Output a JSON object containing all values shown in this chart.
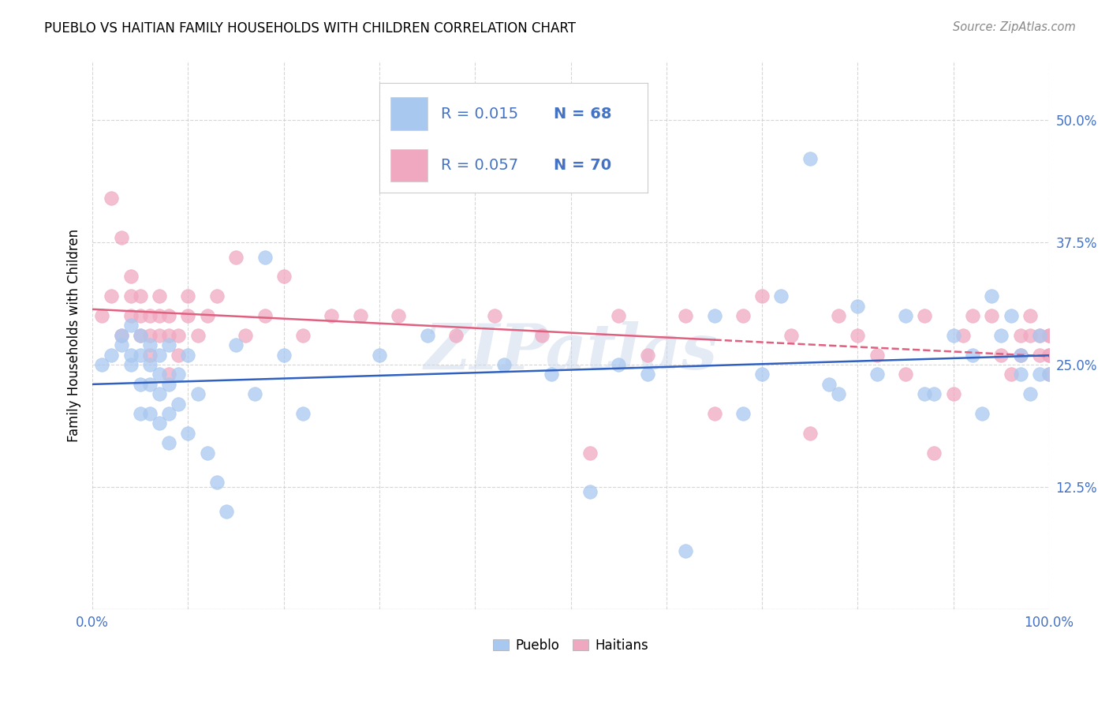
{
  "title": "PUEBLO VS HAITIAN FAMILY HOUSEHOLDS WITH CHILDREN CORRELATION CHART",
  "source": "Source: ZipAtlas.com",
  "ylabel": "Family Households with Children",
  "xlim": [
    0.0,
    1.0
  ],
  "ylim": [
    0.0,
    0.56
  ],
  "xticks": [
    0.0,
    0.1,
    0.2,
    0.3,
    0.4,
    0.5,
    0.6,
    0.7,
    0.8,
    0.9,
    1.0
  ],
  "xticklabels": [
    "0.0%",
    "",
    "",
    "",
    "",
    "",
    "",
    "",
    "",
    "",
    "100.0%"
  ],
  "yticks": [
    0.0,
    0.125,
    0.25,
    0.375,
    0.5
  ],
  "yticklabels": [
    "",
    "12.5%",
    "25.0%",
    "37.5%",
    "50.0%"
  ],
  "pueblo_color": "#a8c8f0",
  "haitian_color": "#f0a8c0",
  "pueblo_line_color": "#3060c0",
  "haitian_line_color": "#e06080",
  "pueblo_R": 0.015,
  "pueblo_N": 68,
  "haitian_R": 0.057,
  "haitian_N": 70,
  "legend_text_color": "#4472c4",
  "watermark": "ZIPatlas",
  "pueblo_x": [
    0.01,
    0.02,
    0.03,
    0.03,
    0.04,
    0.04,
    0.04,
    0.05,
    0.05,
    0.05,
    0.05,
    0.06,
    0.06,
    0.06,
    0.06,
    0.07,
    0.07,
    0.07,
    0.07,
    0.08,
    0.08,
    0.08,
    0.08,
    0.09,
    0.09,
    0.1,
    0.1,
    0.11,
    0.12,
    0.13,
    0.14,
    0.15,
    0.17,
    0.18,
    0.2,
    0.22,
    0.3,
    0.35,
    0.43,
    0.48,
    0.52,
    0.55,
    0.58,
    0.62,
    0.65,
    0.68,
    0.7,
    0.72,
    0.75,
    0.77,
    0.78,
    0.8,
    0.82,
    0.85,
    0.87,
    0.88,
    0.9,
    0.92,
    0.93,
    0.94,
    0.95,
    0.96,
    0.97,
    0.97,
    0.98,
    0.99,
    0.99,
    1.0
  ],
  "pueblo_y": [
    0.25,
    0.26,
    0.27,
    0.28,
    0.25,
    0.26,
    0.29,
    0.2,
    0.23,
    0.26,
    0.28,
    0.2,
    0.23,
    0.25,
    0.27,
    0.19,
    0.22,
    0.24,
    0.26,
    0.17,
    0.2,
    0.23,
    0.27,
    0.21,
    0.24,
    0.18,
    0.26,
    0.22,
    0.16,
    0.13,
    0.1,
    0.27,
    0.22,
    0.36,
    0.26,
    0.2,
    0.26,
    0.28,
    0.25,
    0.24,
    0.12,
    0.25,
    0.24,
    0.06,
    0.3,
    0.2,
    0.24,
    0.32,
    0.46,
    0.23,
    0.22,
    0.31,
    0.24,
    0.3,
    0.22,
    0.22,
    0.28,
    0.26,
    0.2,
    0.32,
    0.28,
    0.3,
    0.26,
    0.24,
    0.22,
    0.24,
    0.28,
    0.24
  ],
  "haitian_x": [
    0.01,
    0.02,
    0.02,
    0.03,
    0.03,
    0.04,
    0.04,
    0.04,
    0.05,
    0.05,
    0.05,
    0.06,
    0.06,
    0.06,
    0.07,
    0.07,
    0.07,
    0.08,
    0.08,
    0.08,
    0.09,
    0.09,
    0.1,
    0.1,
    0.11,
    0.12,
    0.13,
    0.15,
    0.16,
    0.18,
    0.2,
    0.22,
    0.25,
    0.28,
    0.32,
    0.38,
    0.42,
    0.47,
    0.52,
    0.55,
    0.58,
    0.62,
    0.65,
    0.68,
    0.7,
    0.73,
    0.75,
    0.78,
    0.8,
    0.82,
    0.85,
    0.87,
    0.88,
    0.9,
    0.91,
    0.92,
    0.94,
    0.95,
    0.96,
    0.97,
    0.97,
    0.98,
    0.98,
    0.99,
    0.99,
    1.0,
    1.0,
    1.0,
    1.0,
    1.0
  ],
  "haitian_y": [
    0.3,
    0.32,
    0.42,
    0.28,
    0.38,
    0.3,
    0.32,
    0.34,
    0.28,
    0.3,
    0.32,
    0.26,
    0.28,
    0.3,
    0.28,
    0.3,
    0.32,
    0.24,
    0.28,
    0.3,
    0.26,
    0.28,
    0.3,
    0.32,
    0.28,
    0.3,
    0.32,
    0.36,
    0.28,
    0.3,
    0.34,
    0.28,
    0.3,
    0.3,
    0.3,
    0.28,
    0.3,
    0.28,
    0.16,
    0.3,
    0.26,
    0.3,
    0.2,
    0.3,
    0.32,
    0.28,
    0.18,
    0.3,
    0.28,
    0.26,
    0.24,
    0.3,
    0.16,
    0.22,
    0.28,
    0.3,
    0.3,
    0.26,
    0.24,
    0.28,
    0.26,
    0.28,
    0.3,
    0.26,
    0.28,
    0.26,
    0.28,
    0.26,
    0.24,
    0.28
  ]
}
